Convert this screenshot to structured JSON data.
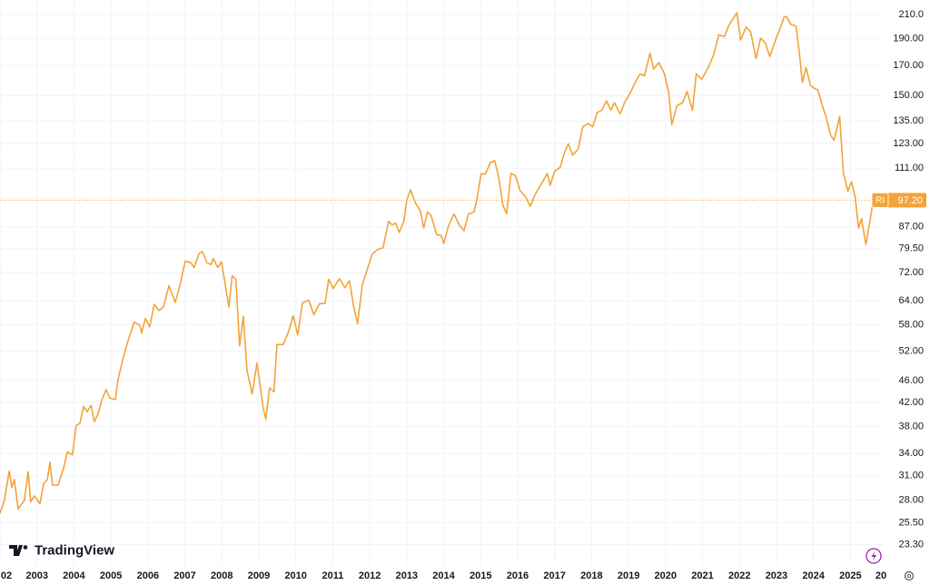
{
  "chart_data": {
    "type": "line",
    "log_scale": true,
    "grid": true,
    "color": "#f2a33a",
    "symbol": "RI",
    "last_price": {
      "value": 97.2,
      "label": "97.20"
    },
    "watermark": "TradingView",
    "xlim": [
      2002,
      2025.9
    ],
    "ylim": [
      21.4,
      223
    ],
    "xticks": [
      {
        "value": 2002,
        "label": "02"
      },
      2003,
      2004,
      2005,
      2006,
      2007,
      2008,
      2009,
      2010,
      2011,
      2012,
      2013,
      2014,
      2015,
      2016,
      2017,
      2018,
      2019,
      2020,
      2021,
      2022,
      2023,
      2024,
      2025,
      {
        "value": 2026,
        "label": "20"
      }
    ],
    "yticks": [
      {
        "value": 23.3,
        "label": "23.30"
      },
      {
        "value": 25.5,
        "label": "25.50"
      },
      {
        "value": 28,
        "label": "28.00"
      },
      {
        "value": 31,
        "label": "31.00"
      },
      {
        "value": 34,
        "label": "34.00"
      },
      {
        "value": 38,
        "label": "38.00"
      },
      {
        "value": 42,
        "label": "42.00"
      },
      {
        "value": 46,
        "label": "46.00"
      },
      {
        "value": 52,
        "label": "52.00"
      },
      {
        "value": 58,
        "label": "58.00"
      },
      {
        "value": 64,
        "label": "64.00"
      },
      {
        "value": 72,
        "label": "72.00"
      },
      {
        "value": 79.5,
        "label": "79.50"
      },
      {
        "value": 87,
        "label": "87.00"
      },
      {
        "value": 111,
        "label": "111.00"
      },
      {
        "value": 123,
        "label": "123.00"
      },
      {
        "value": 135,
        "label": "135.00"
      },
      {
        "value": 150,
        "label": "150.00"
      },
      {
        "value": 170,
        "label": "170.00"
      },
      {
        "value": 190,
        "label": "190.00"
      },
      {
        "value": 210,
        "label": "210.0"
      }
    ],
    "x": [
      2002,
      2002.12,
      2002.25,
      2002.32,
      2002.39,
      2002.49,
      2002.66,
      2002.76,
      2002.83,
      2002.93,
      2003.08,
      2003.18,
      2003.28,
      2003.35,
      2003.42,
      2003.57,
      2003.72,
      2003.82,
      2003.96,
      2004.06,
      2004.16,
      2004.26,
      2004.36,
      2004.46,
      2004.55,
      2004.65,
      2004.75,
      2004.87,
      2004.97,
      2005.12,
      2005.19,
      2005.34,
      2005.49,
      2005.63,
      2005.78,
      2005.83,
      2005.93,
      2006.05,
      2006.17,
      2006.3,
      2006.42,
      2006.57,
      2006.74,
      2006.86,
      2007.01,
      2007.16,
      2007.25,
      2007.38,
      2007.47,
      2007.6,
      2007.7,
      2007.77,
      2007.89,
      2007.99,
      2008.09,
      2008.19,
      2008.28,
      2008.38,
      2008.48,
      2008.58,
      2008.68,
      2008.82,
      2008.95,
      2009.12,
      2009.19,
      2009.29,
      2009.41,
      2009.49,
      2009.66,
      2009.81,
      2009.93,
      2010.05,
      2010.18,
      2010.35,
      2010.49,
      2010.64,
      2010.79,
      2010.89,
      2011.01,
      2011.18,
      2011.33,
      2011.45,
      2011.57,
      2011.67,
      2011.8,
      2011.92,
      2012.07,
      2012.21,
      2012.36,
      2012.51,
      2012.61,
      2012.7,
      2012.8,
      2012.92,
      2013.0,
      2013.1,
      2013.24,
      2013.37,
      2013.46,
      2013.56,
      2013.66,
      2013.81,
      2013.93,
      2014.0,
      2014.13,
      2014.28,
      2014.42,
      2014.55,
      2014.67,
      2014.82,
      2014.91,
      2015.01,
      2015.13,
      2015.26,
      2015.38,
      2015.48,
      2015.6,
      2015.7,
      2015.82,
      2015.94,
      2016.07,
      2016.21,
      2016.34,
      2016.48,
      2016.66,
      2016.8,
      2016.88,
      2017.0,
      2017.15,
      2017.27,
      2017.37,
      2017.49,
      2017.64,
      2017.76,
      2017.91,
      2018.03,
      2018.15,
      2018.28,
      2018.4,
      2018.52,
      2018.62,
      2018.77,
      2018.89,
      2019.04,
      2019.19,
      2019.31,
      2019.43,
      2019.58,
      2019.68,
      2019.82,
      2019.97,
      2020.09,
      2020.17,
      2020.31,
      2020.46,
      2020.58,
      2020.73,
      2020.83,
      2020.98,
      2021.17,
      2021.3,
      2021.44,
      2021.59,
      2021.71,
      2021.93,
      2022.03,
      2022.18,
      2022.3,
      2022.45,
      2022.57,
      2022.7,
      2022.82,
      2022.97,
      2023.11,
      2023.21,
      2023.28,
      2023.38,
      2023.53,
      2023.63,
      2023.7,
      2023.8,
      2023.92,
      2024.02,
      2024.12,
      2024.24,
      2024.34,
      2024.46,
      2024.56,
      2024.71,
      2024.81,
      2024.93,
      2025.03,
      2025.13,
      2025.22,
      2025.3,
      2025.42,
      2025.52,
      2025.62
    ],
    "values": [
      26.5,
      28.0,
      31.6,
      29.5,
      30.5,
      27.0,
      28.0,
      31.5,
      27.8,
      28.5,
      27.6,
      30.0,
      30.5,
      32.8,
      29.8,
      29.8,
      32.0,
      34.2,
      33.8,
      38.2,
      38.5,
      41.3,
      40.4,
      41.5,
      38.8,
      40.0,
      42.4,
      44.3,
      42.8,
      42.5,
      46.1,
      50.8,
      55.0,
      58.6,
      57.9,
      56.0,
      59.5,
      57.5,
      63.1,
      61.5,
      62.4,
      68.2,
      63.6,
      68.0,
      75.5,
      75.0,
      73.5,
      77.8,
      78.6,
      75.0,
      74.4,
      76.3,
      73.5,
      75.3,
      68.6,
      62.4,
      71.0,
      70.0,
      53.1,
      60.0,
      48.0,
      43.5,
      49.5,
      41.0,
      39.2,
      44.6,
      43.9,
      53.4,
      53.4,
      56.5,
      60.2,
      55.6,
      63.5,
      64.2,
      60.4,
      63.3,
      63.3,
      70.0,
      67.4,
      70.2,
      67.6,
      69.6,
      62.3,
      58.2,
      68.4,
      72.5,
      77.8,
      79.2,
      79.8,
      89.0,
      87.7,
      88.4,
      85.0,
      89.0,
      97.1,
      101.5,
      96.0,
      93.0,
      86.6,
      92.5,
      91.2,
      84.3,
      84.0,
      81.2,
      87.4,
      91.8,
      87.7,
      85.6,
      91.8,
      92.5,
      98.6,
      108.4,
      108.4,
      113.5,
      114.5,
      107.6,
      95.3,
      91.8,
      108.6,
      107.6,
      101.0,
      98.7,
      94.8,
      99.7,
      104.5,
      108.6,
      103.4,
      109.6,
      111.4,
      118.5,
      122.8,
      117.2,
      120.2,
      131.8,
      133.6,
      131.8,
      139.8,
      141.2,
      146.8,
      141.2,
      145.6,
      139.1,
      145.6,
      151.4,
      158.9,
      164.2,
      162.8,
      178.8,
      167.4,
      172.0,
      164.2,
      151.4,
      133.0,
      143.9,
      145.6,
      152.6,
      141.2,
      164.2,
      160.5,
      169.4,
      177.5,
      193.0,
      191.5,
      200.5,
      211.6,
      188.9,
      199.3,
      195.5,
      174.9,
      190.5,
      186.4,
      176.4,
      188.5,
      199.3,
      207.9,
      207.9,
      201.7,
      200.1,
      176.4,
      158.3,
      168.6,
      156.5,
      154.7,
      153.5,
      143.9,
      137.5,
      127.5,
      124.6,
      137.5,
      108.9,
      100.9,
      104.9,
      98.4,
      86.6,
      90.0,
      80.9,
      88.5,
      97.2
    ]
  }
}
